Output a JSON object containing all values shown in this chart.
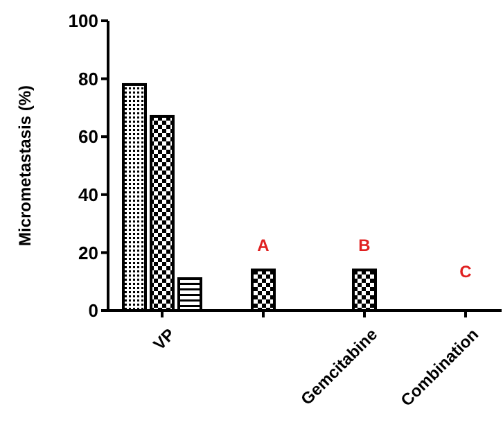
{
  "chart_data": {
    "type": "bar",
    "ylabel": "Micrometastasis (%)",
    "categories": [
      "VP",
      null,
      "Gemcitabine",
      "Combination"
    ],
    "series": [
      {
        "color": "#000000",
        "values": [
          78,
          null,
          null,
          null
        ]
      },
      {
        "color": "#000000",
        "values": [
          67,
          14,
          14,
          0
        ]
      },
      {
        "color": "#000000",
        "values": [
          11,
          null,
          null,
          null
        ]
      }
    ],
    "ylim": [
      0,
      100
    ],
    "yticks": [
      0,
      20,
      40,
      60,
      80,
      100
    ],
    "grid": false,
    "annotations": [
      "A",
      "B",
      "C"
    ]
  }
}
